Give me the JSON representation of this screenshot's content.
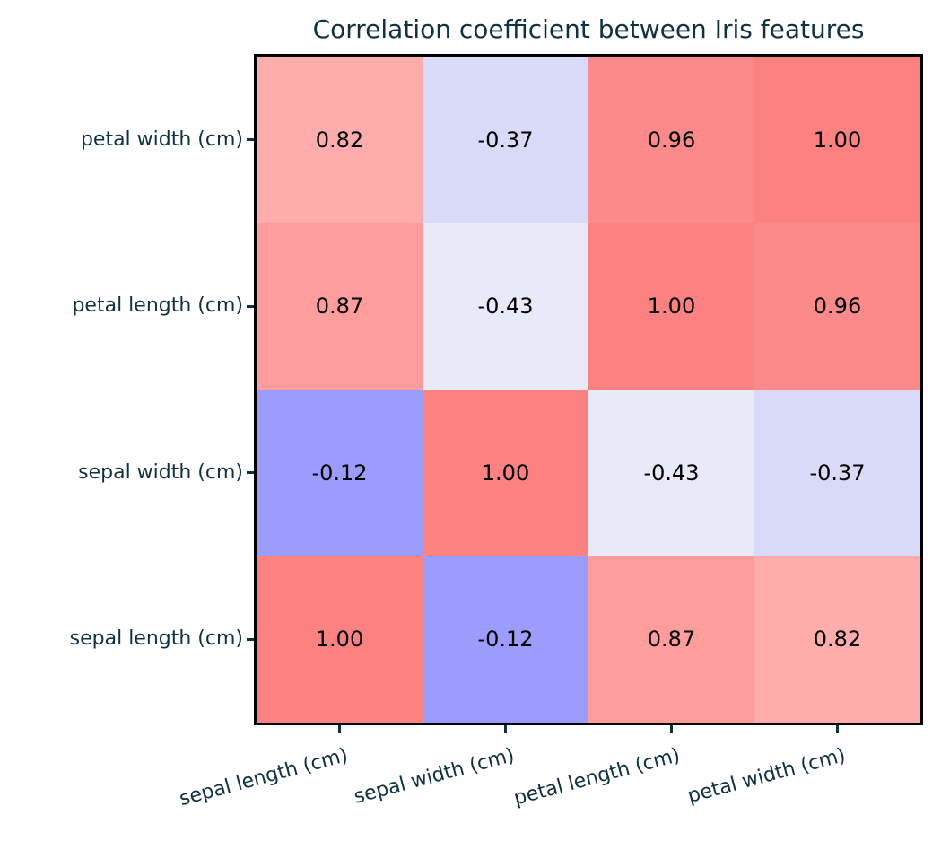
{
  "title": "Correlation coefficient between Iris features",
  "colors": {
    "label_text": "#103240",
    "cell_text": "#000000",
    "spine": "#000000",
    "background": "#ffffff"
  },
  "chart_data": {
    "type": "heatmap",
    "title": "Correlation coefficient between Iris features",
    "xlabel": "",
    "ylabel": "",
    "grid": false,
    "legend": "none",
    "colormap": "blue-white-red diverging (light/bwr-like)",
    "x_tick_labels": [
      "sepal length (cm)",
      "sepal width (cm)",
      "petal length (cm)",
      "petal width (cm)"
    ],
    "y_tick_labels_top_to_bottom": [
      "petal width (cm)",
      "petal length (cm)",
      "sepal width (cm)",
      "sepal length (cm)"
    ],
    "matrix_rows_top_to_bottom": [
      [
        0.82,
        -0.37,
        0.96,
        1.0
      ],
      [
        0.87,
        -0.43,
        1.0,
        0.96
      ],
      [
        -0.12,
        1.0,
        -0.43,
        -0.37
      ],
      [
        1.0,
        -0.12,
        0.87,
        0.82
      ]
    ],
    "cell_labels": [
      [
        "0.82",
        "-0.37",
        "0.96",
        "1.00"
      ],
      [
        "0.87",
        "-0.43",
        "1.00",
        "0.96"
      ],
      [
        "-0.12",
        "1.00",
        "-0.43",
        "-0.37"
      ],
      [
        "1.00",
        "-0.12",
        "0.87",
        "0.82"
      ]
    ],
    "cell_colors": [
      [
        "#FFACAC",
        "#D9D9F8",
        "#FD8A8A",
        "#FC8181"
      ],
      [
        "#FF9D9D",
        "#E9E9FA",
        "#FC8181",
        "#FD8A8A"
      ],
      [
        "#9C9CFC",
        "#FC8181",
        "#E9E9FA",
        "#D9D9F8"
      ],
      [
        "#FC8181",
        "#9C9CFC",
        "#FF9D9D",
        "#FFACAC"
      ]
    ],
    "x_label_rotation_deg": 15
  }
}
